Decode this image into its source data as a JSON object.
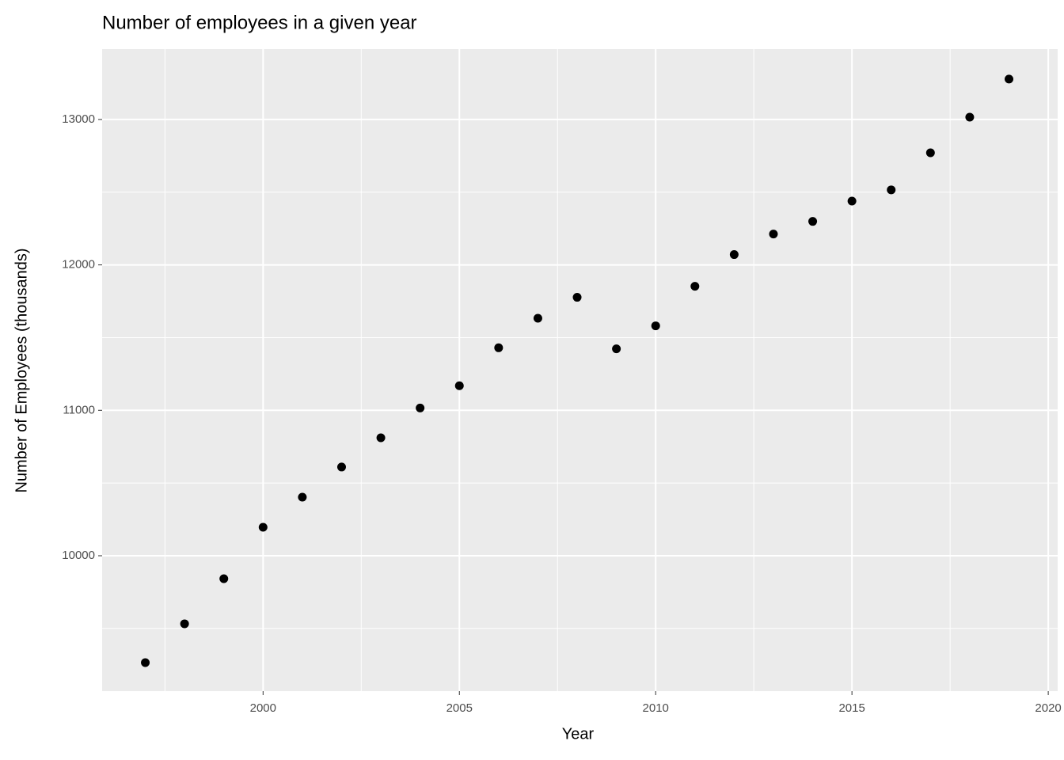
{
  "chart_data": {
    "type": "scatter",
    "title": "Number of employees in a given year",
    "x_label": "Year",
    "y_label": "Number of Employees (thousands)",
    "x": [
      1997,
      1998,
      1999,
      2000,
      2001,
      2002,
      2003,
      2004,
      2005,
      2006,
      2007,
      2008,
      2009,
      2010,
      2011,
      2012,
      2013,
      2014,
      2015,
      2016,
      2017,
      2018,
      2019
    ],
    "values": [
      9265,
      9532,
      9842,
      10196,
      10403,
      10610,
      10811,
      11016,
      11169,
      11430,
      11633,
      11777,
      11423,
      11581,
      11853,
      12071,
      12212,
      12299,
      12439,
      12516,
      12771,
      13016,
      13278
    ],
    "color": "#000000",
    "xlim": [
      1995.9,
      2020.24
    ],
    "xticks": [
      2000,
      2005,
      2010,
      2015,
      2020
    ],
    "x_minor_ticks": [
      1997.5,
      2002.5,
      2007.5,
      2012.5,
      2017.5
    ],
    "ylim": [
      9069,
      13484
    ],
    "yticks": [
      10000,
      11000,
      12000,
      13000
    ],
    "y_minor_ticks": [
      9500,
      10500,
      11500,
      12500
    ],
    "grid": true
  }
}
